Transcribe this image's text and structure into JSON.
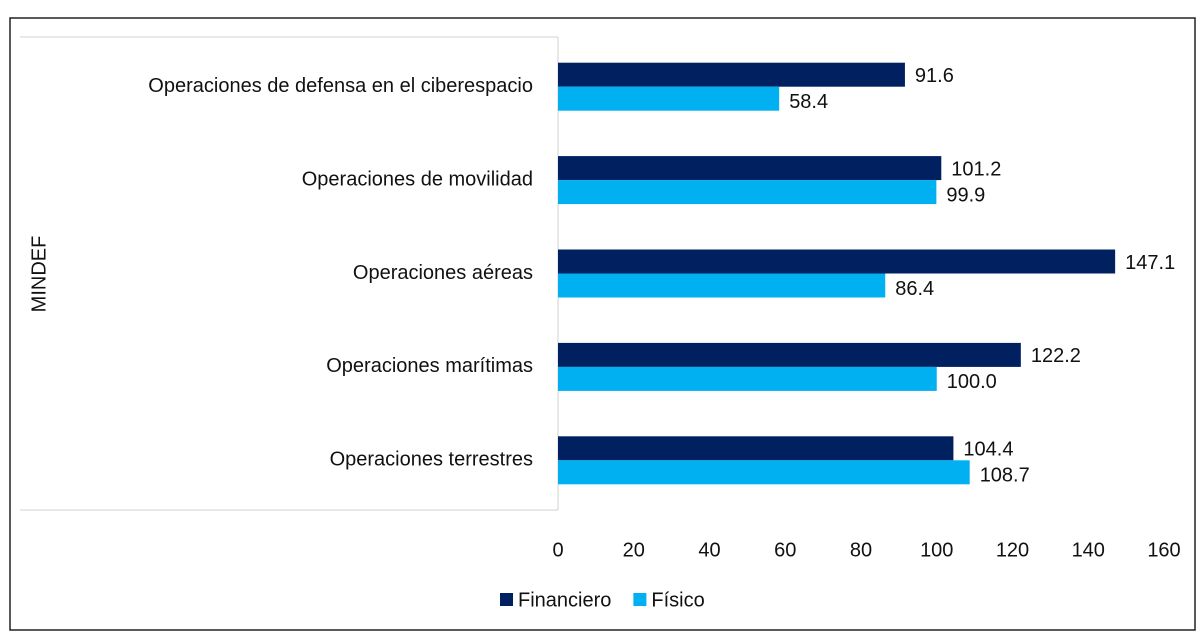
{
  "chart_data": {
    "type": "bar",
    "orientation": "horizontal",
    "ylabel": "MINDEF",
    "categories": [
      "Operaciones de defensa en el ciberespacio",
      "Operaciones de movilidad",
      "Operaciones aéreas",
      "Operaciones marítimas",
      "Operaciones terrestres"
    ],
    "series": [
      {
        "name": "Financiero",
        "color": "#002060",
        "values": [
          91.6,
          101.2,
          147.1,
          122.2,
          104.4
        ],
        "value_labels": [
          "91.6",
          "101.2",
          "147.1",
          "122.2",
          "104.4"
        ]
      },
      {
        "name": "Físico",
        "color": "#00b0f0",
        "values": [
          58.4,
          99.9,
          86.4,
          100.0,
          108.7
        ],
        "value_labels": [
          "58.4",
          "99.9",
          "86.4",
          "100.0",
          "108.7"
        ]
      }
    ],
    "xlim": [
      0,
      160
    ],
    "xticks": [
      0,
      20,
      40,
      60,
      80,
      100,
      120,
      140,
      160
    ],
    "grid": false,
    "legend": "bottom"
  }
}
